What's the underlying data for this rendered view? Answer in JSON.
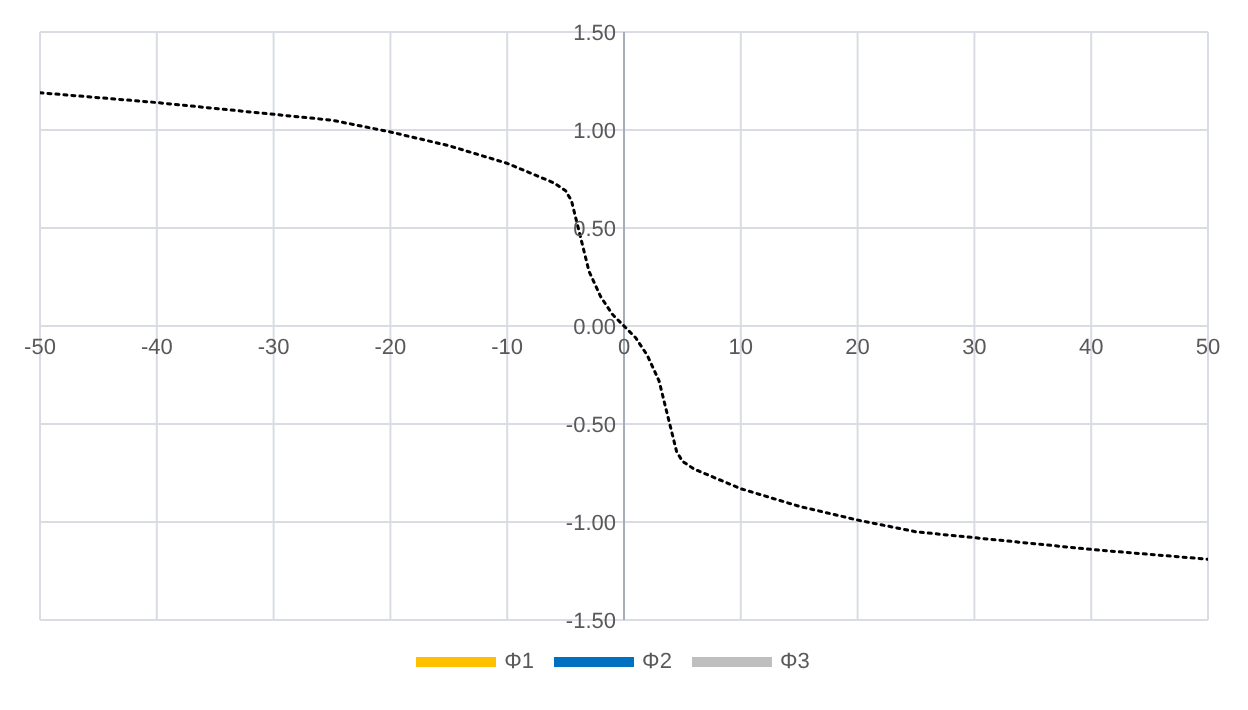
{
  "chart_data": {
    "type": "line",
    "x": [
      -50,
      -40,
      -30,
      -25,
      -20,
      -15,
      -10,
      -8,
      -6,
      -5,
      -4.5,
      -4,
      -3.5,
      -3,
      -2,
      -1,
      0,
      1,
      2,
      3,
      3.5,
      4,
      4.5,
      5,
      6,
      8,
      10,
      15,
      20,
      25,
      30,
      40,
      50
    ],
    "series": [
      {
        "color": "#000000",
        "line_style": "dotted",
        "values": [
          1.19,
          1.14,
          1.08,
          1.05,
          0.99,
          0.92,
          0.83,
          0.78,
          0.73,
          0.69,
          0.64,
          0.52,
          0.4,
          0.28,
          0.15,
          0.06,
          0,
          -0.06,
          -0.15,
          -0.28,
          -0.4,
          -0.52,
          -0.64,
          -0.69,
          -0.73,
          -0.78,
          -0.83,
          -0.92,
          -0.99,
          -1.05,
          -1.08,
          -1.14,
          -1.19
        ]
      },
      {
        "name": "Φ1",
        "color": "#ffc000",
        "values": [
          null,
          null,
          null,
          null,
          null,
          null,
          null,
          null,
          null,
          null,
          null,
          null,
          null,
          null,
          null,
          null,
          null,
          null,
          null,
          null,
          null,
          null,
          null,
          null,
          null,
          null,
          null,
          null,
          null,
          null,
          null,
          null,
          null
        ]
      },
      {
        "name": "Φ2",
        "color": "#0070c0",
        "values": [
          null,
          null,
          null,
          null,
          null,
          null,
          null,
          null,
          null,
          null,
          null,
          null,
          null,
          null,
          null,
          null,
          null,
          null,
          null,
          null,
          null,
          null,
          null,
          null,
          null,
          null,
          null,
          null,
          null,
          null,
          null,
          null,
          null
        ]
      },
      {
        "name": "Φ3",
        "color": "#bfbfbf",
        "values": [
          null,
          null,
          null,
          null,
          null,
          null,
          null,
          null,
          null,
          null,
          null,
          null,
          null,
          null,
          null,
          null,
          null,
          null,
          null,
          null,
          null,
          null,
          null,
          null,
          null,
          null,
          null,
          null,
          null,
          null,
          null,
          null,
          null
        ]
      }
    ],
    "xlim": [
      -50,
      50
    ],
    "xticks": [
      -50,
      -40,
      -30,
      -20,
      -10,
      0,
      10,
      20,
      30,
      40,
      50
    ],
    "ylim": [
      -1.5,
      1.5
    ],
    "yticks": [
      {
        "value": -1.5,
        "label": "-1.50"
      },
      {
        "value": -1,
        "label": "-1.00"
      },
      {
        "value": -0.5,
        "label": "-0.50"
      },
      {
        "value": 0,
        "label": "0.00"
      },
      {
        "value": 0.5,
        "label": "0.50"
      },
      {
        "value": 1,
        "label": "1.00"
      },
      {
        "value": 1.5,
        "label": "1.50"
      }
    ],
    "grid": true,
    "legend": "bottom",
    "marker": "none"
  }
}
